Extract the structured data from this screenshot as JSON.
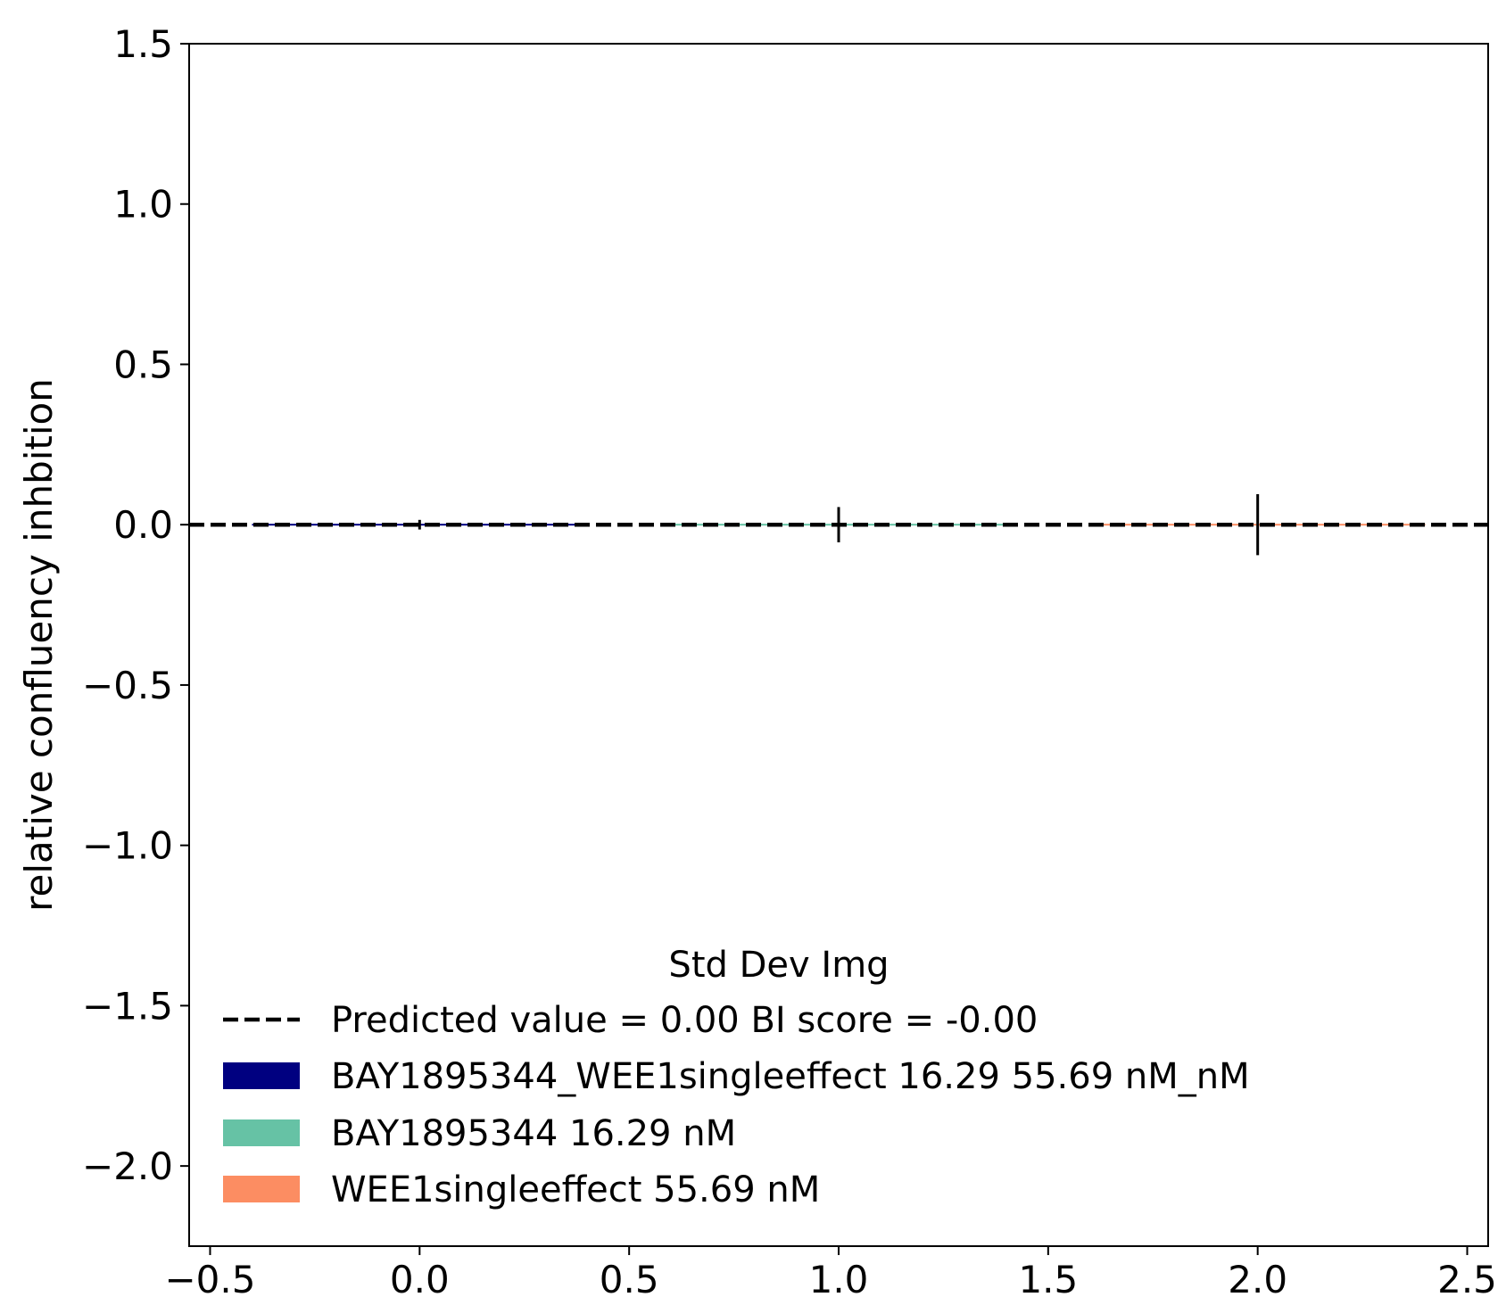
{
  "chart_data": {
    "type": "bar",
    "x_axis": {
      "lim": [
        -0.55,
        2.55
      ],
      "ticks": [
        -0.5,
        0.0,
        0.5,
        1.0,
        1.5,
        2.0,
        2.5
      ],
      "tick_labels": [
        "−0.5",
        "0.0",
        "0.5",
        "1.0",
        "1.5",
        "2.0",
        "2.5"
      ],
      "label": ""
    },
    "y_axis": {
      "lim": [
        -2.25,
        1.5
      ],
      "ticks": [
        1.5,
        1.0,
        0.5,
        0.0,
        -0.5,
        -1.0,
        -1.5,
        -2.0
      ],
      "tick_labels": [
        "1.5",
        "1.0",
        "0.5",
        "0.0",
        "−0.5",
        "−1.0",
        "−1.5",
        "−2.0"
      ],
      "label": "relative confluency inhbition"
    },
    "title": "",
    "grid": false,
    "bars": [
      {
        "x": 0,
        "value": 0.0,
        "error": 0.015,
        "color": "#000080",
        "series": "BAY1895344_WEE1singleeffect 16.29 55.69 nM_nM"
      },
      {
        "x": 1,
        "value": 0.0,
        "error": 0.055,
        "color": "#66c2a5",
        "series": "BAY1895344 16.29 nM"
      },
      {
        "x": 2,
        "value": 0.0,
        "error": 0.095,
        "color": "#fc8d62",
        "series": "WEE1singleeffect 55.69 nM"
      }
    ],
    "predicted_line": {
      "value": 0.0,
      "style": "dashed",
      "color": "#000000"
    },
    "legend": {
      "title": "Std Dev Img",
      "location": "lower center",
      "entries": [
        {
          "label": "Predicted value = 0.00 BI score = -0.00",
          "kind": "line",
          "color": "#000000"
        },
        {
          "label": "BAY1895344_WEE1singleeffect 16.29 55.69 nM_nM",
          "kind": "patch",
          "color": "#000080"
        },
        {
          "label": "BAY1895344 16.29 nM",
          "kind": "patch",
          "color": "#66c2a5"
        },
        {
          "label": "WEE1singleeffect 55.69 nM",
          "kind": "patch",
          "color": "#fc8d62"
        }
      ]
    }
  }
}
